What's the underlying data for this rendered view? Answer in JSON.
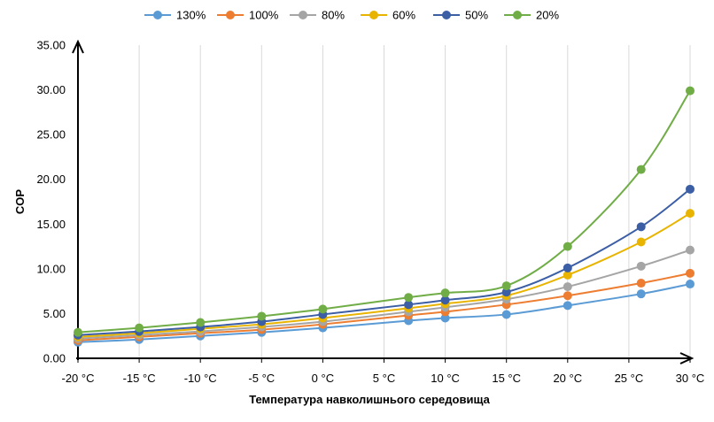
{
  "chart_data": {
    "type": "line",
    "title": "",
    "xlabel": "Температура навколишнього середовища",
    "ylabel": "COP",
    "x": [
      -20,
      -15,
      -10,
      -5,
      0,
      7,
      10,
      15,
      20,
      26,
      30
    ],
    "x_ticks": [
      -20,
      -15,
      -10,
      -5,
      0,
      5,
      10,
      15,
      20,
      25,
      30
    ],
    "x_tick_labels": [
      "-20 °C",
      "-15 °C",
      "-10 °C",
      "-5 °C",
      "0 °C",
      "5 °C",
      "10 °C",
      "15 °C",
      "20 °C",
      "25 °C",
      "30 °C"
    ],
    "xlim": [
      -20,
      30
    ],
    "ylim": [
      0,
      35
    ],
    "y_ticks": [
      0,
      5,
      10,
      15,
      20,
      25,
      30,
      35
    ],
    "y_tick_labels": [
      "0.00",
      "5.00",
      "10.00",
      "15.00",
      "20.00",
      "25.00",
      "30.00",
      "35.00"
    ],
    "grid": "vertical",
    "legend_position": "top",
    "series": [
      {
        "name": "130%",
        "color": "#5b9bd5",
        "values": [
          1.8,
          2.1,
          2.5,
          2.9,
          3.4,
          4.2,
          4.5,
          4.9,
          5.9,
          7.2,
          8.3
        ]
      },
      {
        "name": "100%",
        "color": "#ed7d31",
        "values": [
          2.0,
          2.4,
          2.8,
          3.2,
          3.8,
          4.8,
          5.2,
          6.0,
          7.0,
          8.4,
          9.5
        ]
      },
      {
        "name": "80%",
        "color": "#a5a5a5",
        "values": [
          2.2,
          2.6,
          3.0,
          3.5,
          4.1,
          5.2,
          5.7,
          6.6,
          8.0,
          10.3,
          12.1
        ]
      },
      {
        "name": "60%",
        "color": "#e8b400",
        "values": [
          2.4,
          2.8,
          3.3,
          3.8,
          4.5,
          5.6,
          6.1,
          7.0,
          9.3,
          13.0,
          16.2
        ]
      },
      {
        "name": "50%",
        "color": "#3b5ea5",
        "values": [
          2.6,
          3.0,
          3.5,
          4.1,
          4.9,
          6.0,
          6.5,
          7.4,
          10.1,
          14.7,
          18.9
        ]
      },
      {
        "name": "20%",
        "color": "#70ad47",
        "values": [
          2.9,
          3.4,
          4.0,
          4.7,
          5.5,
          6.8,
          7.3,
          8.1,
          12.5,
          21.1,
          29.9
        ]
      }
    ]
  }
}
